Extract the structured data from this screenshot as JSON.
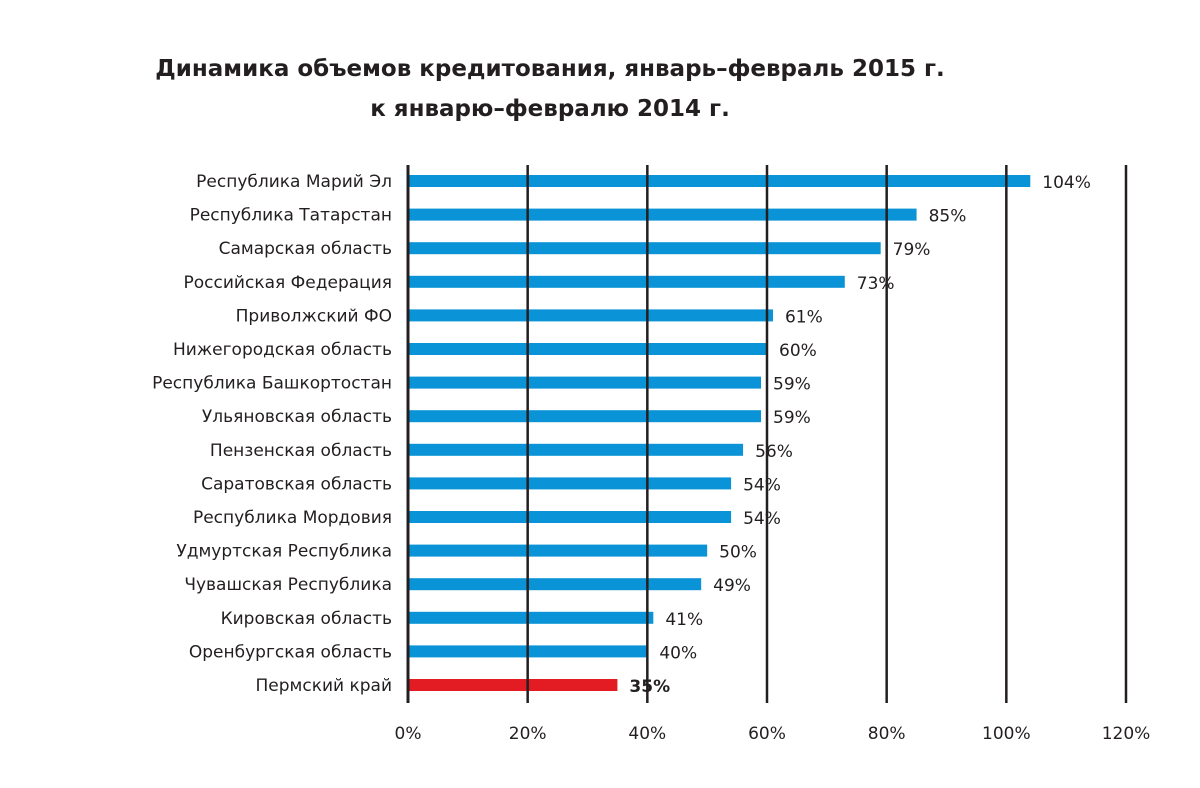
{
  "chart_data": {
    "type": "bar",
    "orientation": "horizontal",
    "title": "Динамика объемов кредитования, январь–февраль 2015 г.",
    "subtitle": "к январю–февралю 2014 г.",
    "categories": [
      "Республика Марий Эл",
      "Республика Татарстан",
      "Самарская область",
      "Российская Федерация",
      "Приволжский ФО",
      "Нижегородская область",
      "Республика Башкортостан",
      "Ульяновская область",
      "Пензенская область",
      "Саратовская область",
      "Республика Мордовия",
      "Удмуртская Республика",
      "Чувашская Республика",
      "Кировская область",
      "Оренбургская область",
      "Пермский край"
    ],
    "values": [
      104,
      85,
      79,
      73,
      61,
      60,
      59,
      59,
      56,
      54,
      54,
      50,
      49,
      41,
      40,
      35
    ],
    "data_labels": [
      "104%",
      "85%",
      "79%",
      "73%",
      "61%",
      "60%",
      "59%",
      "59%",
      "56%",
      "54%",
      "54%",
      "50%",
      "49%",
      "41%",
      "40%",
      "35%"
    ],
    "highlight_index": 15,
    "xlim": [
      0,
      120
    ],
    "xticks": [
      0,
      20,
      40,
      60,
      80,
      100,
      120
    ],
    "xtick_labels": [
      "0%",
      "20%",
      "40%",
      "60%",
      "80%",
      "100%",
      "120%"
    ],
    "grid": "vertical",
    "colors": {
      "bar": "#0a93d6",
      "highlight": "#e31b23",
      "grid": "#231f20"
    }
  }
}
